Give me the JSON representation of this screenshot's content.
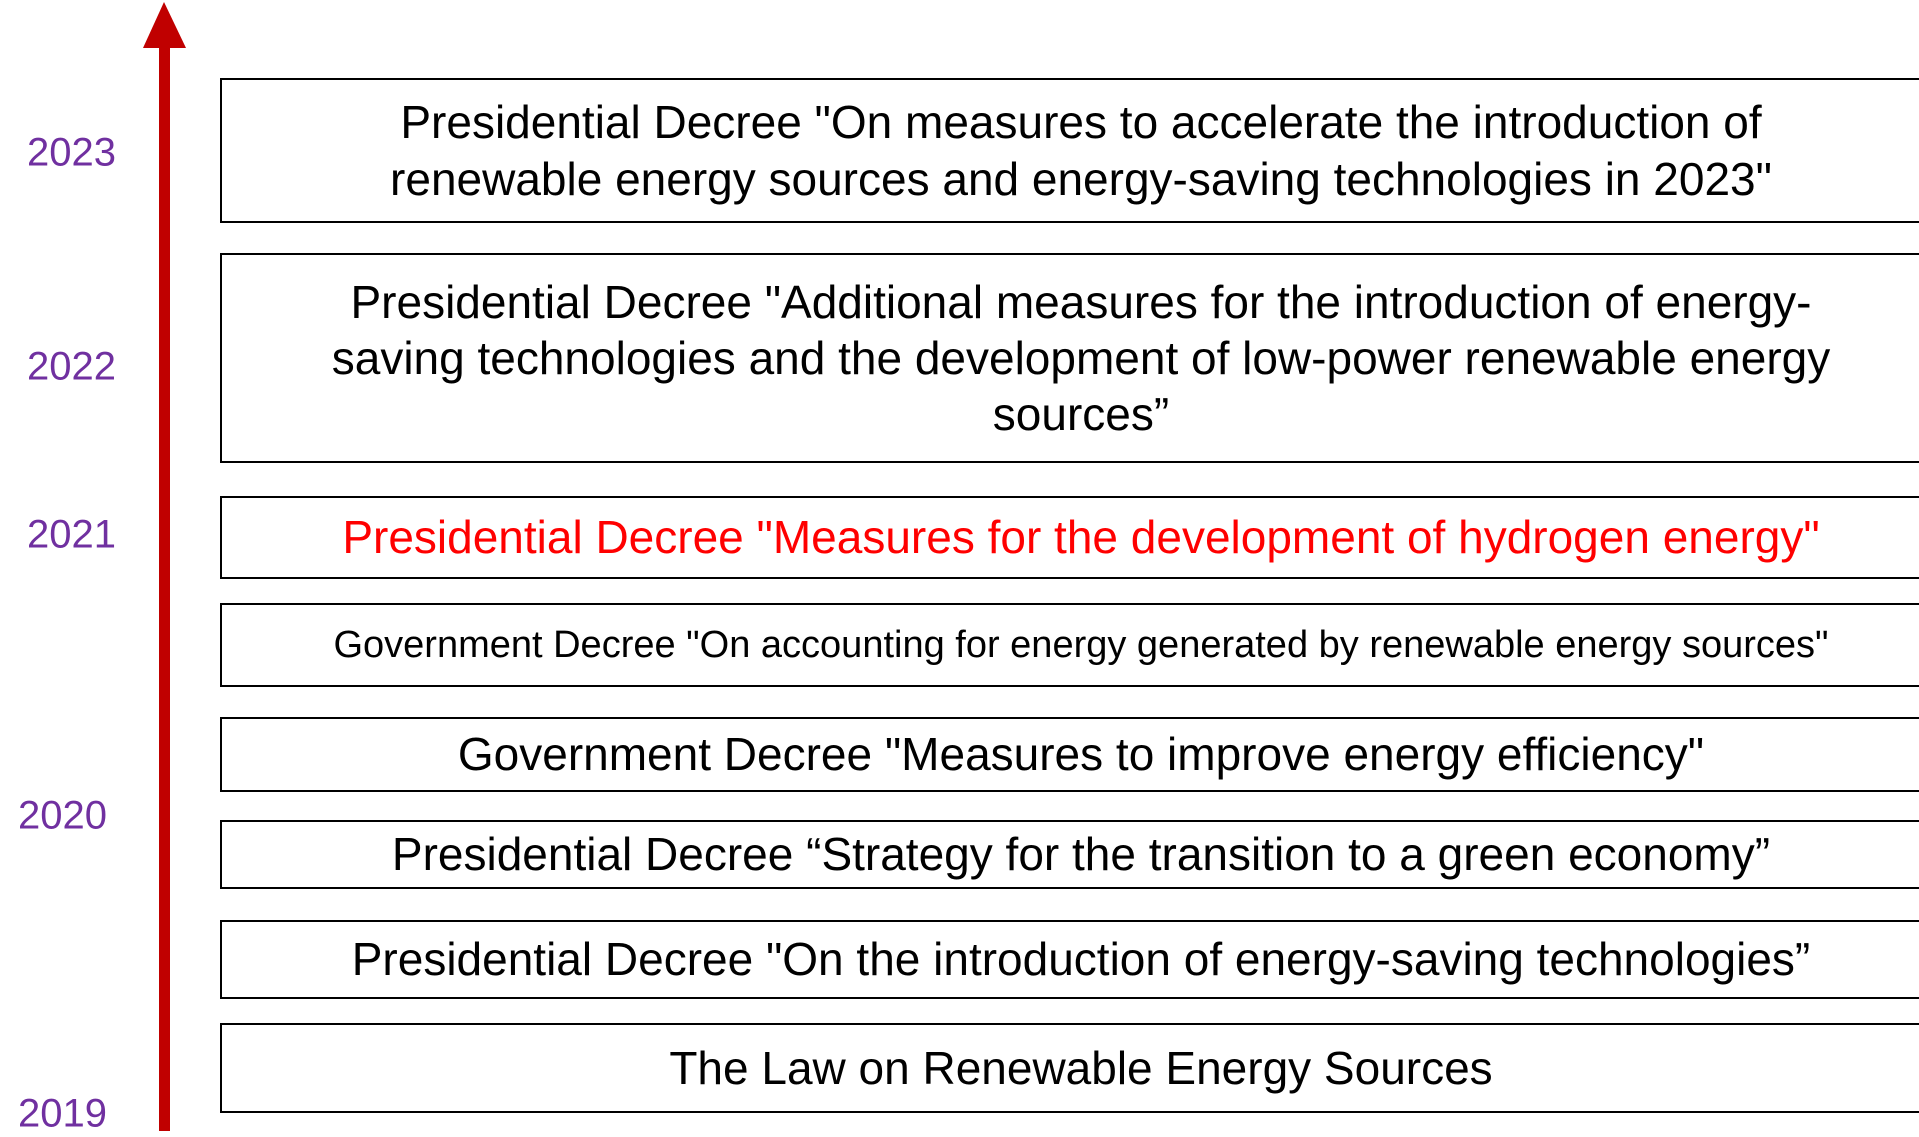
{
  "years": [
    "2023",
    "2022",
    "2021",
    "2020",
    "2019"
  ],
  "items": [
    {
      "text": "Presidential Decree \"On measures to accelerate the introduction of renewable energy sources and energy-saving technologies in 2023\""
    },
    {
      "text": "Presidential Decree \"Additional measures for the introduction of energy-saving technologies and the development of low-power renewable energy sources”"
    },
    {
      "text": "Presidential Decree \"Measures for the development of hydrogen energy\"",
      "color": "#ff0000"
    },
    {
      "text": "Government Decree \"On accounting for energy generated by renewable energy sources\""
    },
    {
      "text": "Government Decree \"Measures to improve energy efficiency\""
    },
    {
      "text": "Presidential Decree “Strategy for the transition to a green economy”"
    },
    {
      "text": "Presidential Decree \"On the introduction of energy-saving technologies”"
    },
    {
      "text": "The Law on Renewable Energy Sources"
    }
  ]
}
